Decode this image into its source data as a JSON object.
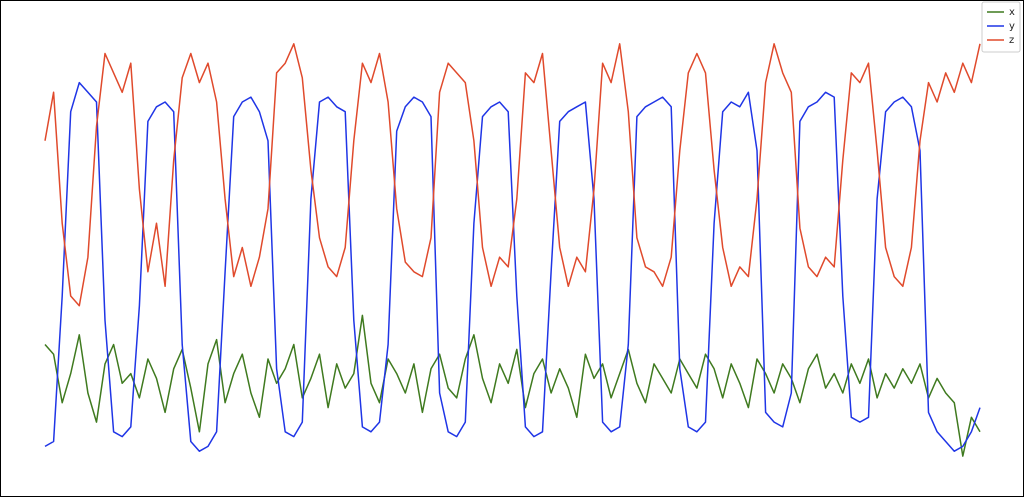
{
  "chart_data": {
    "type": "line",
    "ylim": [
      0,
      100
    ],
    "legend": "upper right",
    "series": [
      {
        "name": "x",
        "color": "#3f7a1f",
        "values": [
          30,
          28,
          18,
          24,
          32,
          20,
          14,
          26,
          30,
          22,
          24,
          19,
          27,
          23,
          16,
          25,
          29,
          21,
          12,
          26,
          31,
          18,
          24,
          28,
          20,
          15,
          27,
          22,
          25,
          30,
          19,
          23,
          28,
          17,
          26,
          21,
          24,
          36,
          22,
          18,
          27,
          24,
          20,
          26,
          16,
          25,
          28,
          21,
          19,
          27,
          32,
          23,
          18,
          26,
          22,
          29,
          17,
          24,
          27,
          20,
          25,
          21,
          15,
          28,
          23,
          26,
          19,
          24,
          29,
          22,
          18,
          26,
          23,
          20,
          27,
          24,
          21,
          28,
          25,
          19,
          26,
          22,
          17,
          27,
          24,
          20,
          26,
          23,
          18,
          25,
          28,
          21,
          24,
          20,
          26,
          22,
          27,
          19,
          24,
          21,
          25,
          22,
          26,
          19,
          23,
          20,
          18,
          7,
          15,
          12
        ]
      },
      {
        "name": "y",
        "color": "#1f35e6",
        "values": [
          9,
          10,
          40,
          78,
          84,
          82,
          80,
          35,
          12,
          11,
          13,
          38,
          76,
          79,
          80,
          78,
          30,
          10,
          8,
          9,
          12,
          45,
          77,
          80,
          81,
          78,
          72,
          25,
          12,
          11,
          14,
          60,
          80,
          81,
          79,
          78,
          35,
          13,
          12,
          14,
          30,
          74,
          79,
          81,
          80,
          77,
          20,
          12,
          11,
          14,
          55,
          77,
          79,
          80,
          78,
          40,
          13,
          11,
          12,
          45,
          76,
          78,
          79,
          80,
          60,
          14,
          12,
          13,
          30,
          77,
          79,
          80,
          81,
          79,
          25,
          13,
          12,
          14,
          55,
          78,
          80,
          79,
          82,
          70,
          16,
          14,
          13,
          20,
          76,
          79,
          80,
          82,
          81,
          40,
          15,
          14,
          15,
          60,
          78,
          80,
          81,
          79,
          70,
          16,
          12,
          10,
          8,
          9,
          12,
          17
        ]
      },
      {
        "name": "z",
        "color": "#e04a2c",
        "values": [
          72,
          82,
          55,
          40,
          38,
          48,
          75,
          90,
          86,
          82,
          88,
          62,
          45,
          55,
          42,
          68,
          85,
          90,
          84,
          88,
          80,
          60,
          44,
          50,
          42,
          48,
          58,
          86,
          88,
          92,
          85,
          66,
          52,
          46,
          44,
          50,
          72,
          88,
          84,
          90,
          80,
          58,
          47,
          45,
          44,
          52,
          82,
          88,
          86,
          84,
          72,
          50,
          42,
          48,
          46,
          60,
          86,
          84,
          90,
          70,
          50,
          42,
          48,
          45,
          62,
          88,
          84,
          92,
          78,
          52,
          46,
          45,
          42,
          48,
          70,
          86,
          90,
          86,
          66,
          50,
          42,
          46,
          44,
          60,
          84,
          92,
          86,
          82,
          54,
          46,
          44,
          48,
          46,
          68,
          86,
          84,
          88,
          70,
          50,
          44,
          42,
          50,
          72,
          84,
          80,
          86,
          82,
          88,
          84,
          92
        ]
      }
    ]
  }
}
